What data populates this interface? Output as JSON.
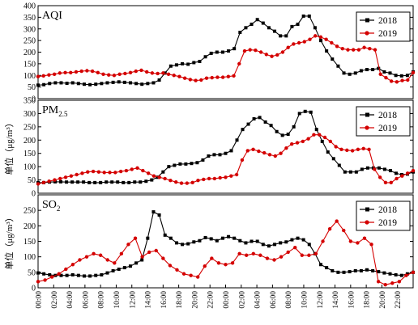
{
  "chart_data": [
    {
      "type": "line",
      "title": "AQI",
      "ylabel": "",
      "ylim": [
        0,
        400
      ],
      "yticks": [
        0,
        50,
        100,
        150,
        200,
        250,
        300,
        350,
        400
      ],
      "legend": "top-right",
      "series": [
        {
          "name": "2018",
          "color": "#000000",
          "marker": "square",
          "values": [
            58,
            60,
            65,
            68,
            68,
            66,
            68,
            65,
            62,
            60,
            62,
            65,
            68,
            70,
            72,
            70,
            68,
            65,
            62,
            65,
            68,
            80,
            110,
            140,
            145,
            150,
            148,
            155,
            160,
            180,
            195,
            200,
            200,
            205,
            215,
            285,
            305,
            320,
            340,
            325,
            305,
            290,
            270,
            270,
            310,
            320,
            355,
            355,
            305,
            250,
            205,
            170,
            140,
            110,
            105,
            110,
            120,
            125,
            125,
            130,
            115,
            110,
            100,
            98,
            100,
            115
          ]
        },
        {
          "name": "2019",
          "color": "#d40000",
          "marker": "circle",
          "values": [
            95,
            98,
            102,
            105,
            110,
            112,
            112,
            115,
            118,
            120,
            118,
            112,
            105,
            102,
            100,
            105,
            108,
            112,
            118,
            122,
            115,
            110,
            108,
            110,
            105,
            100,
            95,
            88,
            82,
            78,
            80,
            88,
            90,
            92,
            92,
            95,
            98,
            150,
            205,
            210,
            208,
            200,
            190,
            182,
            188,
            200,
            220,
            235,
            240,
            245,
            255,
            270,
            265,
            255,
            240,
            225,
            215,
            210,
            210,
            210,
            220,
            215,
            210,
            105,
            90,
            75,
            72,
            78,
            80,
            112
          ]
        }
      ]
    },
    {
      "type": "line",
      "title": "PM",
      "title_subscript": "2.5",
      "ylabel": "单位（μg/m³）",
      "ylim": [
        0,
        350
      ],
      "yticks": [
        0,
        50,
        100,
        150,
        200,
        250,
        300,
        350
      ],
      "legend": "top-right",
      "series": [
        {
          "name": "2018",
          "color": "#000000",
          "marker": "square",
          "values": [
            40,
            40,
            42,
            43,
            43,
            42,
            42,
            42,
            42,
            40,
            40,
            40,
            42,
            42,
            42,
            40,
            40,
            42,
            42,
            45,
            50,
            60,
            80,
            100,
            105,
            110,
            110,
            112,
            115,
            125,
            140,
            145,
            145,
            150,
            160,
            200,
            240,
            260,
            280,
            285,
            268,
            255,
            232,
            218,
            222,
            250,
            300,
            308,
            305,
            240,
            195,
            155,
            130,
            105,
            80,
            80,
            80,
            90,
            95,
            95,
            95,
            90,
            85,
            75,
            70,
            72,
            80
          ]
        },
        {
          "name": "2019",
          "color": "#d40000",
          "marker": "circle",
          "values": [
            35,
            40,
            45,
            50,
            55,
            60,
            65,
            70,
            75,
            80,
            82,
            80,
            78,
            78,
            78,
            82,
            85,
            90,
            95,
            85,
            75,
            65,
            60,
            55,
            48,
            42,
            38,
            38,
            40,
            48,
            52,
            55,
            55,
            58,
            60,
            65,
            70,
            125,
            160,
            165,
            158,
            152,
            145,
            140,
            150,
            170,
            185,
            190,
            195,
            205,
            220,
            220,
            210,
            195,
            175,
            165,
            162,
            160,
            165,
            168,
            165,
            90,
            60,
            40,
            40,
            55,
            65,
            75,
            85
          ]
        }
      ]
    },
    {
      "type": "line",
      "title": "SO",
      "title_subscript": "2",
      "ylabel": "单位（μg/m³）",
      "ylim": [
        0,
        300
      ],
      "yticks": [
        0,
        50,
        100,
        150,
        200,
        250
      ],
      "legend": "top-right",
      "series": [
        {
          "name": "2018",
          "color": "#000000",
          "marker": "square",
          "values": [
            48,
            45,
            42,
            40,
            40,
            40,
            42,
            40,
            38,
            38,
            40,
            42,
            48,
            55,
            60,
            65,
            70,
            80,
            90,
            160,
            245,
            235,
            170,
            160,
            145,
            140,
            142,
            148,
            152,
            162,
            158,
            152,
            160,
            165,
            160,
            152,
            145,
            150,
            150,
            140,
            135,
            140,
            145,
            148,
            155,
            160,
            155,
            140,
            110,
            75,
            65,
            55,
            50,
            50,
            52,
            55,
            55,
            58,
            55,
            52,
            48,
            45,
            42,
            40,
            45,
            50
          ]
        },
        {
          "name": "2019",
          "color": "#d40000",
          "marker": "circle",
          "values": [
            20,
            25,
            35,
            45,
            60,
            75,
            90,
            100,
            110,
            105,
            90,
            80,
            110,
            140,
            160,
            100,
            115,
            120,
            95,
            72,
            58,
            45,
            40,
            35,
            70,
            95,
            80,
            75,
            80,
            110,
            105,
            110,
            105,
            95,
            90,
            100,
            115,
            130,
            105,
            105,
            110,
            150,
            190,
            215,
            185,
            150,
            145,
            160,
            140,
            20,
            10,
            15,
            20,
            40,
            50
          ]
        }
      ]
    }
  ],
  "x_axis": {
    "ticks": [
      "00:00",
      "02:00",
      "04:00",
      "06:00",
      "08:00",
      "10:00",
      "12:00",
      "14:00",
      "16:00",
      "18:00",
      "20:00",
      "22:00",
      "00:00",
      "02:00",
      "04:00",
      "06:00",
      "08:00",
      "10:00",
      "12:00",
      "14:00",
      "16:00",
      "18:00",
      "20:00",
      "22:00"
    ]
  }
}
